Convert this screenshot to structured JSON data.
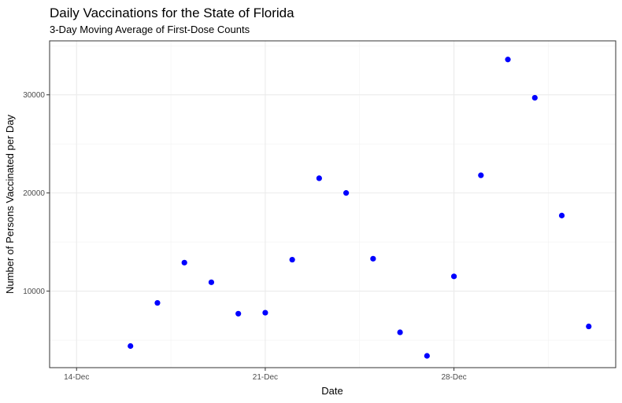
{
  "chart_data": {
    "type": "scatter",
    "title": "Daily Vaccinations for the State of Florida",
    "subtitle": "3-Day Moving Average of First-Dose Counts",
    "xlabel": "Date",
    "ylabel": "Number of Persons Vaccinated per Day",
    "x_ticks": [
      "14-Dec",
      "21-Dec",
      "28-Dec"
    ],
    "y_ticks": [
      "10000",
      "20000",
      "30000"
    ],
    "x": [
      "2020-12-16",
      "2020-12-17",
      "2020-12-18",
      "2020-12-19",
      "2020-12-20",
      "2020-12-21",
      "2020-12-22",
      "2020-12-23",
      "2020-12-24",
      "2020-12-25",
      "2020-12-26",
      "2020-12-27",
      "2020-12-28",
      "2020-12-29",
      "2020-12-30",
      "2020-12-31",
      "2021-01-01",
      "2021-01-02"
    ],
    "y": [
      4400,
      8800,
      12900,
      10900,
      7700,
      7800,
      13200,
      21500,
      20000,
      13300,
      5800,
      3400,
      11500,
      21800,
      33600,
      29700,
      17700,
      6400
    ],
    "xlim": [
      "2020-12-13",
      "2021-01-03"
    ],
    "ylim": [
      2200,
      35500
    ],
    "grid": true,
    "point_color": "#0000ff"
  }
}
